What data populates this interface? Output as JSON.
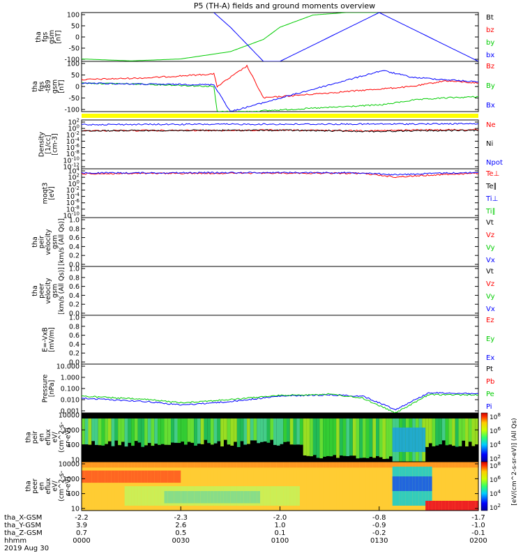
{
  "title": "P5 (TH-A) fields and ground moments overview",
  "date_label": "2019 Aug 30",
  "colors": {
    "black": "#000000",
    "red": "#ff0000",
    "green": "#00cc00",
    "blue": "#0000ff",
    "yellow": "#ffff00"
  },
  "panels": [
    {
      "id": "fgs",
      "ylabel_lines": [
        "tha",
        "fgs",
        "gsm",
        "[nT]"
      ],
      "yticks": [
        "100",
        "50",
        "0",
        "-50",
        "-100"
      ],
      "legend": [
        {
          "label": "Bt",
          "color": "#000000"
        },
        {
          "label": "bz",
          "color": "#ff0000"
        },
        {
          "label": "by",
          "color": "#00cc00"
        },
        {
          "label": "bx",
          "color": "#0000ff"
        }
      ]
    },
    {
      "id": "fgs_t89",
      "ylabel_lines": [
        "tha",
        "fgs",
        "-t89",
        "gsm",
        "[nT]"
      ],
      "yticks": [
        "100",
        "50",
        "0",
        "-50",
        "-100"
      ],
      "legend": [
        {
          "label": "Bz",
          "color": "#ff0000"
        },
        {
          "label": "By",
          "color": "#00cc00"
        },
        {
          "label": "Bx",
          "color": "#0000ff"
        }
      ]
    },
    {
      "id": "density",
      "ylabel_lines": [
        "Density",
        "[1/cc]",
        "[cm-3]"
      ],
      "yticks": [
        "10^2",
        "10^0",
        "10^-2",
        "10^-4",
        "10^-6",
        "10^-8",
        "10^-10",
        "10^-12"
      ],
      "legend": [
        {
          "label": "Ne",
          "color": "#ff0000"
        },
        {
          "label": "Ni",
          "color": "#000000"
        },
        {
          "label": "Npot",
          "color": "#0000ff"
        }
      ]
    },
    {
      "id": "temp",
      "ylabel_lines": [
        "moqt3",
        "[eV]"
      ],
      "yticks": [
        "10^4",
        "10^2",
        "10^0",
        "10^-2",
        "10^-4",
        "10^-6",
        "10^-8",
        "10^-10"
      ],
      "legend": [
        {
          "label": "Te⊥",
          "color": "#ff0000"
        },
        {
          "label": "Te∥",
          "color": "#000000"
        },
        {
          "label": "Ti⊥",
          "color": "#0000ff"
        },
        {
          "label": "Ti∥",
          "color": "#00cc00"
        }
      ]
    },
    {
      "id": "peir_vel",
      "ylabel_lines": [
        "tha",
        "peir",
        "velocity",
        "gsm",
        "[km/s (All Qs)]"
      ],
      "yticks": [
        "1.0",
        "0.8",
        "0.6",
        "0.4",
        "0.2",
        "0.0"
      ],
      "legend": [
        {
          "label": "Vt",
          "color": "#000000"
        },
        {
          "label": "Vz",
          "color": "#ff0000"
        },
        {
          "label": "Vy",
          "color": "#00cc00"
        },
        {
          "label": "Vx",
          "color": "#0000ff"
        }
      ]
    },
    {
      "id": "peer_vel",
      "ylabel_lines": [
        "tha",
        "peer",
        "velocity",
        "gsm",
        "[km/s (All Qs)]"
      ],
      "yticks": [
        "1.0",
        "0.8",
        "0.6",
        "0.4",
        "0.2",
        "0.0"
      ],
      "legend": [
        {
          "label": "Vt",
          "color": "#000000"
        },
        {
          "label": "Vz",
          "color": "#ff0000"
        },
        {
          "label": "Vy",
          "color": "#00cc00"
        },
        {
          "label": "Vx",
          "color": "#0000ff"
        }
      ]
    },
    {
      "id": "efield",
      "ylabel_lines": [
        "E=-VxB",
        "[mV/m]"
      ],
      "yticks": [
        "1.0",
        "0.8",
        "0.6",
        "0.4",
        "0.2",
        "0.0"
      ],
      "legend": [
        {
          "label": "Ez",
          "color": "#ff0000"
        },
        {
          "label": "Ey",
          "color": "#00cc00"
        },
        {
          "label": "Ex",
          "color": "#0000ff"
        }
      ]
    },
    {
      "id": "pressure",
      "ylabel_lines": [
        "Pressure",
        "[nPa]"
      ],
      "yticks": [
        "10.000",
        "1.000",
        "0.100",
        "0.010",
        "0.001"
      ],
      "legend": [
        {
          "label": "Pt",
          "color": "#000000"
        },
        {
          "label": "Pb",
          "color": "#ff0000"
        },
        {
          "label": "Pe",
          "color": "#00cc00"
        },
        {
          "label": "Pi",
          "color": "#0000ff"
        }
      ]
    },
    {
      "id": "peir_spec",
      "ylabel_lines": [
        "tha",
        "peir",
        "en",
        "eflux",
        "eV/",
        "(cm^2-s-",
        "sr-eV)"
      ],
      "yticks": [
        "10000",
        "1000",
        "100",
        "10"
      ],
      "legend": []
    },
    {
      "id": "peer_spec",
      "ylabel_lines": [
        "tha",
        "peer",
        "en",
        "eflux",
        "eV/",
        "(cm^2-s-",
        "sr-eV)"
      ],
      "yticks": [
        "10000",
        "1000",
        "100",
        "10"
      ],
      "legend": []
    }
  ],
  "colorbar": {
    "ticks_top": [
      "10^8",
      "10^6",
      "10^4",
      "10^2"
    ],
    "ticks_bottom": [
      "10^8",
      "10^6",
      "10^4",
      "10^2"
    ],
    "label": "[eV/(cm^2-s-sr-eV)] (All Qs)"
  },
  "x_axis": {
    "row_labels": [
      "tha_X-GSM",
      "tha_Y-GSM",
      "tha_Z-GSM",
      "hhmm",
      "2019 Aug 30"
    ],
    "ticks": [
      {
        "vals": [
          "-2.2",
          "3.9",
          "0.7",
          "0000"
        ]
      },
      {
        "vals": [
          "-2.3",
          "2.6",
          "0.5",
          "0030"
        ]
      },
      {
        "vals": [
          "-2.0",
          "1.0",
          "0.1",
          "0100"
        ]
      },
      {
        "vals": [
          "-0.8",
          "-0.9",
          "-0.2",
          "0130"
        ]
      },
      {
        "vals": [
          "-1.7",
          "-1.0",
          "-0.1",
          "0200"
        ]
      }
    ]
  },
  "chart_data": [
    {
      "type": "line",
      "panel": "fgs",
      "ylim": [
        -100,
        100
      ],
      "series": [
        {
          "name": "by",
          "x_hhmm": [
            "0000",
            "0015",
            "0030",
            "0045",
            "0055",
            "0100",
            "0110",
            "0120",
            "0130"
          ],
          "values": [
            -90,
            -98,
            -90,
            -60,
            -10,
            40,
            90,
            100,
            100
          ]
        },
        {
          "name": "bx",
          "x_hhmm": [
            "0040",
            "0045",
            "0055",
            "0100",
            "0130",
            "0200"
          ],
          "values": [
            100,
            40,
            -100,
            -100,
            100,
            -100
          ]
        }
      ]
    },
    {
      "type": "line",
      "panel": "fgs_t89",
      "ylim": [
        -120,
        100
      ],
      "series": [
        {
          "name": "Bz",
          "x_hhmm": [
            "0000",
            "0020",
            "0040",
            "0041",
            "0050",
            "0055",
            "0131",
            "0140",
            "0150",
            "0200"
          ],
          "values": [
            20,
            28,
            45,
            -10,
            80,
            -60,
            -20,
            -10,
            15,
            5
          ]
        },
        {
          "name": "By",
          "x_hhmm": [
            "0000",
            "0020",
            "0040",
            "0041",
            "0050",
            "0131",
            "0140",
            "0150",
            "0200"
          ],
          "values": [
            5,
            0,
            -10,
            -120,
            -120,
            -90,
            -70,
            -60,
            -55
          ]
        },
        {
          "name": "Bx",
          "x_hhmm": [
            "0000",
            "0020",
            "0040",
            "0045",
            "0131",
            "0140",
            "0200"
          ],
          "values": [
            5,
            0,
            -2,
            -120,
            60,
            30,
            10
          ]
        }
      ]
    },
    {
      "type": "line",
      "panel": "density",
      "ylim": [
        "1e-12",
        "1e3"
      ],
      "series": [
        {
          "name": "Ne",
          "x_hhmm": [
            "0000",
            "0030",
            "0100",
            "0130",
            "0140",
            "0200"
          ],
          "values": [
            0.5,
            0.6,
            0.7,
            0.5,
            0.8,
            1.0
          ]
        },
        {
          "name": "Ni",
          "x_hhmm": [
            "0000",
            "0030",
            "0100",
            "0130",
            "0140",
            "0200"
          ],
          "values": [
            0.5,
            0.6,
            0.7,
            0.3,
            0.5,
            0.6
          ]
        },
        {
          "name": "Npot",
          "x_hhmm": [
            "0000",
            "0030",
            "0100",
            "0130",
            "0140",
            "0200"
          ],
          "values": [
            40,
            45,
            50,
            55,
            60,
            70
          ]
        }
      ]
    },
    {
      "type": "line",
      "panel": "temp",
      "ylim": [
        "1e-10",
        "1e5"
      ],
      "series": [
        {
          "name": "Te⊥",
          "x_hhmm": [
            "0000",
            "0030",
            "0100",
            "0125",
            "0135",
            "0150",
            "0200"
          ],
          "values": [
            3000,
            4000,
            5000,
            4000,
            300,
            2000,
            4000
          ]
        },
        {
          "name": "Ti⊥",
          "x_hhmm": [
            "0000",
            "0030",
            "0100",
            "0125",
            "0135",
            "0150",
            "0200"
          ],
          "values": [
            5000,
            6000,
            7000,
            6000,
            1500,
            5000,
            7000
          ]
        }
      ]
    },
    {
      "type": "line",
      "panel": "pressure",
      "ylim": [
        "0.001",
        "20"
      ],
      "series": [
        {
          "name": "Pi",
          "x_hhmm": [
            "0000",
            "0020",
            "0030",
            "0045",
            "0100",
            "0115",
            "0125",
            "0135",
            "0145",
            "0200"
          ],
          "values": [
            0.02,
            0.01,
            0.005,
            0.01,
            0.03,
            0.04,
            0.03,
            0.002,
            0.06,
            0.05
          ]
        },
        {
          "name": "Pe",
          "x_hhmm": [
            "0000",
            "0020",
            "0030",
            "0045",
            "0100",
            "0115",
            "0125",
            "0135",
            "0145",
            "0200"
          ],
          "values": [
            0.03,
            0.015,
            0.008,
            0.015,
            0.035,
            0.045,
            0.02,
            0.001,
            0.04,
            0.04
          ]
        }
      ]
    },
    {
      "type": "heatmap",
      "panel": "peir_spec",
      "ylim": [
        5,
        20000
      ],
      "description_levels": "spectrogram"
    },
    {
      "type": "heatmap",
      "panel": "peer_spec",
      "ylim": [
        5,
        20000
      ],
      "description_levels": "spectrogram"
    }
  ]
}
